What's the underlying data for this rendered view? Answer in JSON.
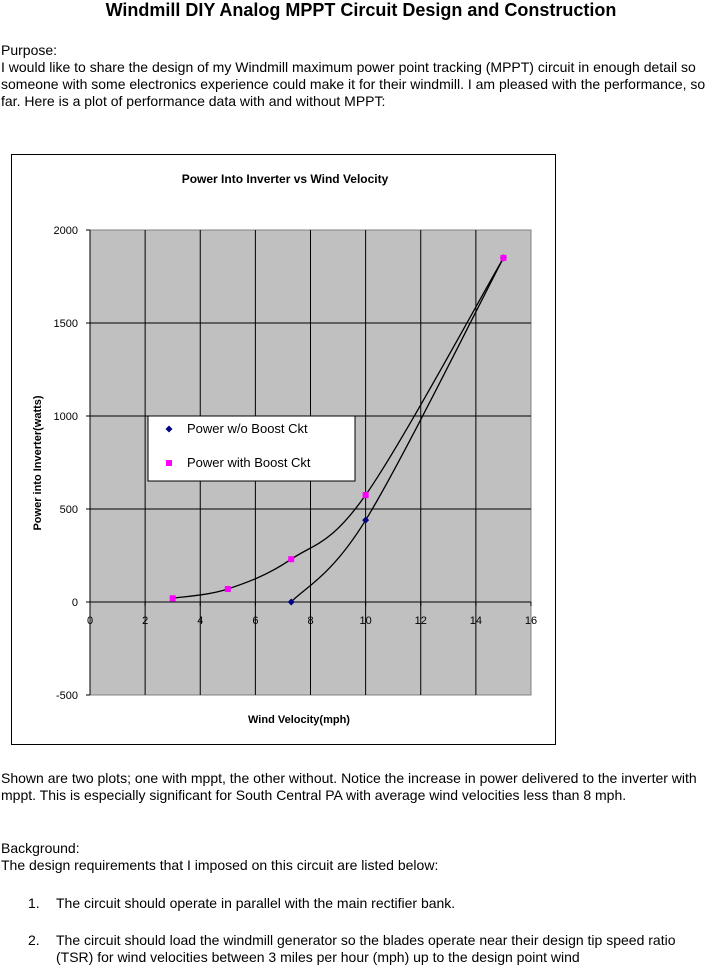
{
  "document": {
    "title": "Windmill DIY Analog MPPT Circuit Design and Construction",
    "purpose_heading": "Purpose:",
    "purpose_text": "I would like to share the design of my Windmill maximum power point tracking (MPPT) circuit in enough detail so someone with some electronics experience could make it for their windmill.  I am pleased with the performance, so far. Here is a plot of performance data with and without MPPT:",
    "shown_text": "Shown are two plots; one with mppt, the other without. Notice the increase in power delivered to the inverter with mppt. This is especially significant for South Central PA with average wind velocities less than 8 mph.",
    "background_heading": "Background:",
    "background_text": "The design requirements that I imposed on this circuit are listed below:",
    "list": [
      {
        "num": "1.",
        "text": "The circuit should operate in parallel with the main rectifier bank."
      },
      {
        "num": "2.",
        "text": "The circuit should load the windmill generator so the blades operate near their design tip speed ratio (TSR) for wind velocities between 3 miles per hour (mph) up to the design point wind"
      }
    ]
  },
  "chart_data": {
    "type": "scatter",
    "title": "Power Into Inverter vs Wind Velocity",
    "xlabel": "Wind Velocity(mph)",
    "ylabel": "Power into Inverter(watts)",
    "xlim": [
      0,
      16
    ],
    "ylim": [
      -500,
      2000
    ],
    "xticks": [
      0,
      2,
      4,
      6,
      8,
      10,
      12,
      14,
      16
    ],
    "yticks": [
      -500,
      0,
      500,
      1000,
      1500,
      2000
    ],
    "grid": true,
    "plot_background": "#c0c0c0",
    "legend_position": "left-middle",
    "series": [
      {
        "name": "Power w/o Boost Ckt",
        "marker": "diamond",
        "color": "#000080",
        "x": [
          7.3,
          10,
          15
        ],
        "y": [
          0,
          440,
          1850
        ]
      },
      {
        "name": "Power with Boost Ckt",
        "marker": "square",
        "color": "#ff00ff",
        "x": [
          3,
          5,
          7.3,
          10,
          15
        ],
        "y": [
          20,
          70,
          230,
          575,
          1850
        ]
      }
    ]
  }
}
